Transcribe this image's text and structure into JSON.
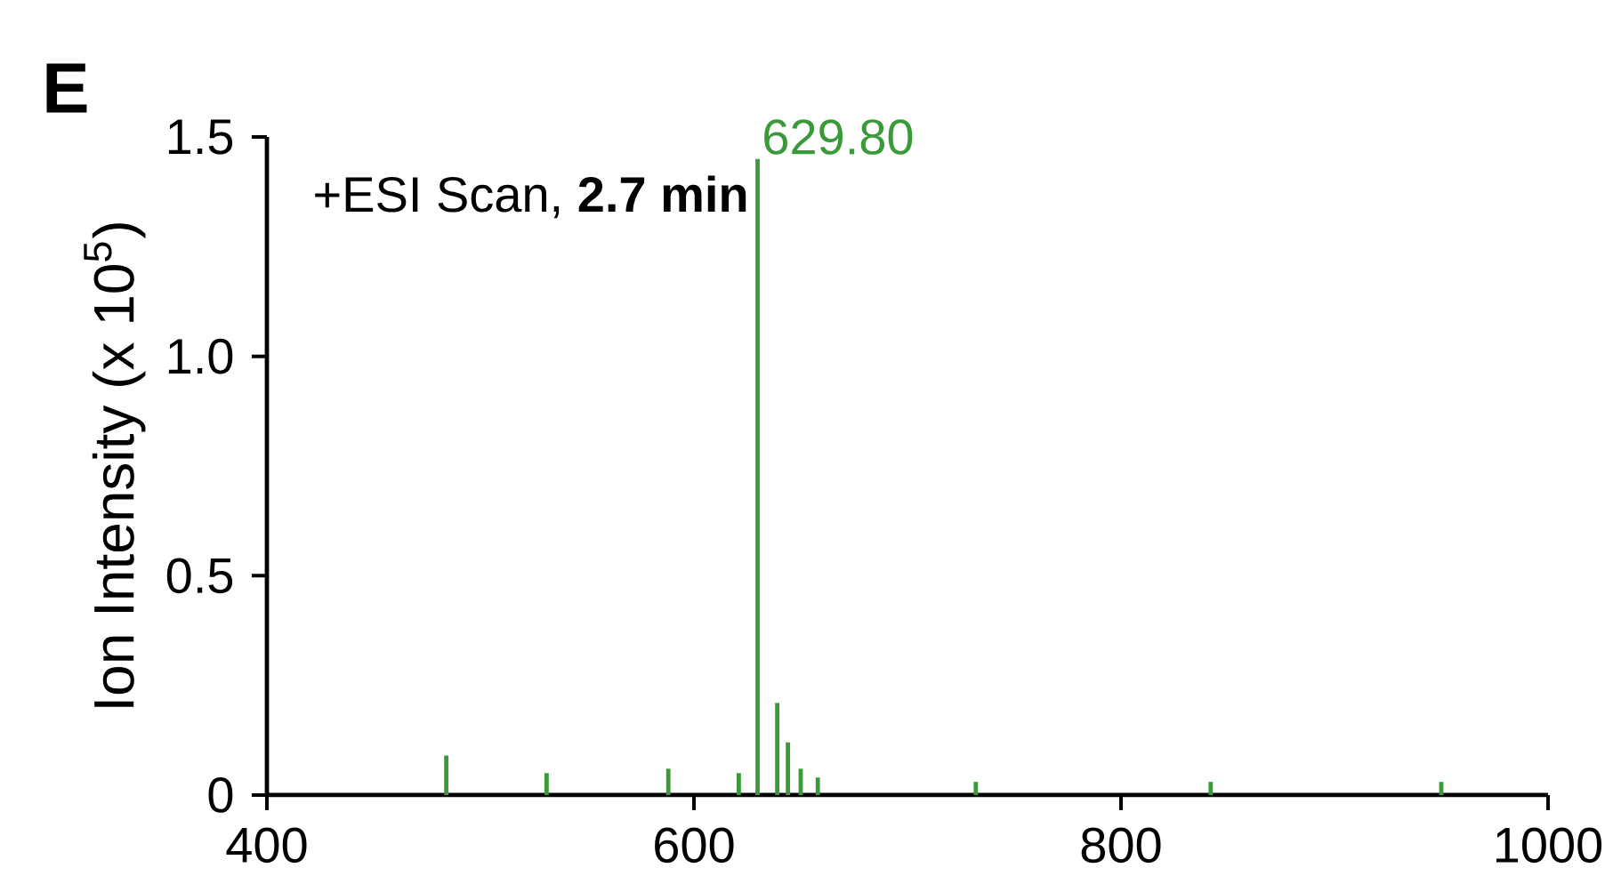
{
  "chart_data": {
    "type": "bar",
    "xlabel": null,
    "ylabel": "Ion Intensity (x 10$^{5}$)",
    "x": [
      484,
      531,
      588,
      621,
      629.8,
      639,
      644,
      650,
      658,
      732,
      842,
      950
    ],
    "values": [
      0.09,
      0.05,
      0.06,
      0.05,
      1.45,
      0.21,
      0.12,
      0.06,
      0.04,
      0.03,
      0.03,
      0.03
    ],
    "color": "#3a9a3a",
    "xlim": [
      400,
      1000
    ],
    "xticks": [
      400,
      600,
      800,
      1000
    ],
    "ylim": [
      0,
      1.5
    ],
    "yticks": [
      0,
      0.5,
      {
        "value": 1.0,
        "label": "1.0"
      },
      1.5
    ],
    "grid": false,
    "annotations": [
      "E",
      "+ESI Scan, **2.7 min**",
      {
        "text": "629.80",
        "x": 629.8,
        "y": 1.45
      }
    ]
  }
}
